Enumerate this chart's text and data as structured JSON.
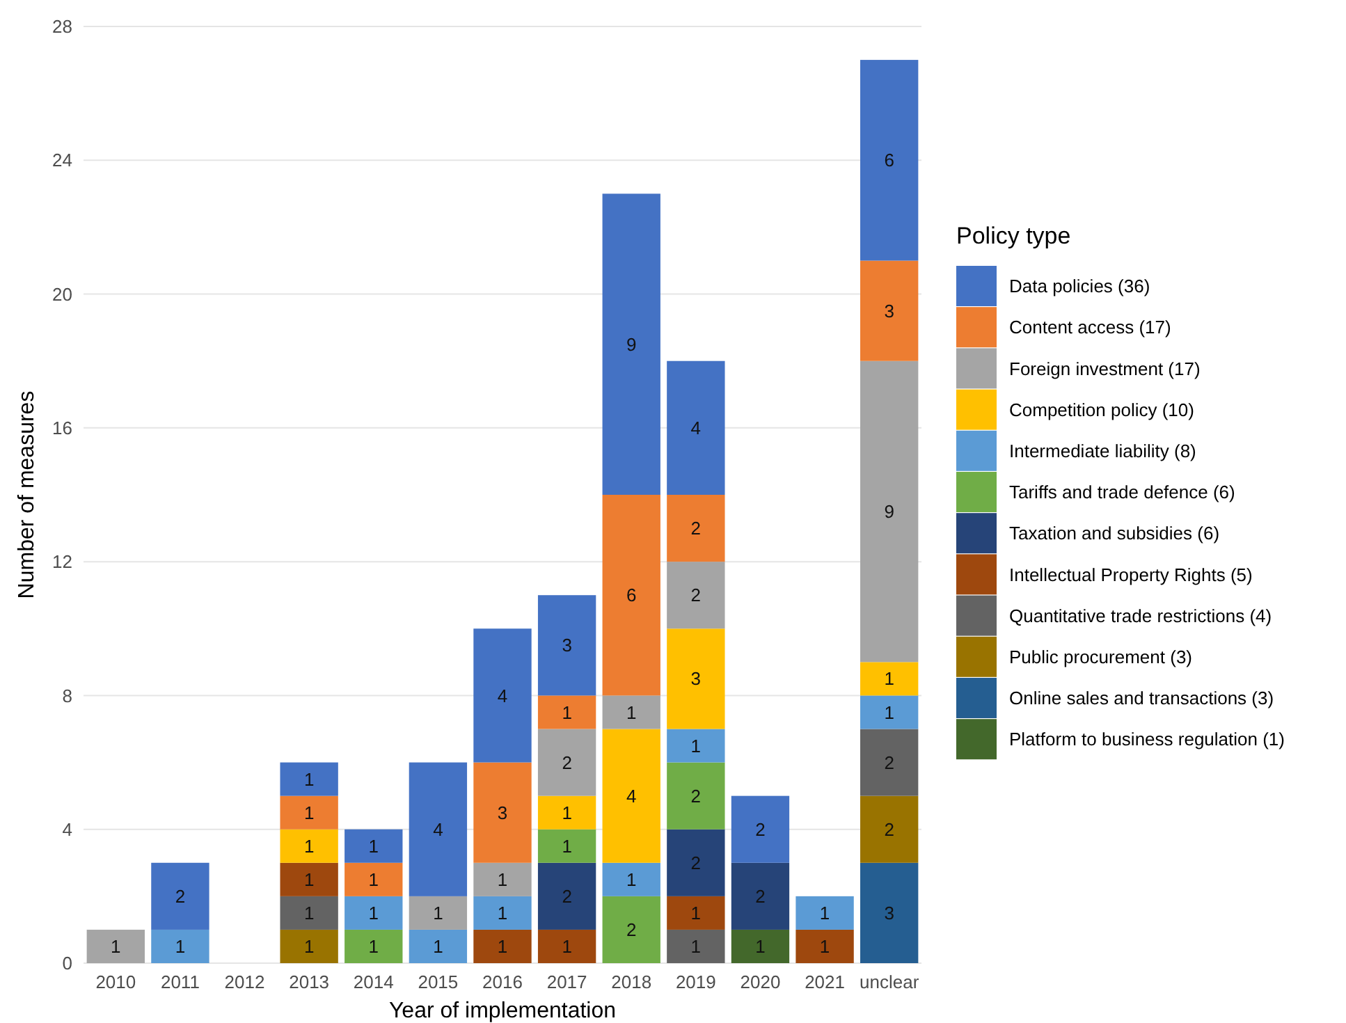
{
  "chart_data": {
    "type": "bar",
    "stacked": true,
    "xlabel": "Year of implementation",
    "ylabel": "Number of measures",
    "legend_title": "Policy type",
    "legend": "right",
    "grid": "y",
    "data_labels": true,
    "categories": [
      "2010",
      "2011",
      "2012",
      "2013",
      "2014",
      "2015",
      "2016",
      "2017",
      "2018",
      "2019",
      "2020",
      "2021",
      "unclear"
    ],
    "ylim": [
      0,
      28
    ],
    "yticks": [
      0,
      4,
      8,
      12,
      16,
      20,
      24,
      28
    ],
    "series": [
      {
        "name": "Platform to business regulation (1)",
        "color": "#43682b",
        "values": [
          null,
          null,
          null,
          null,
          null,
          null,
          null,
          null,
          null,
          null,
          1,
          null,
          null
        ]
      },
      {
        "name": "Online sales and transactions (3)",
        "color": "#255e91",
        "values": [
          null,
          null,
          null,
          null,
          null,
          null,
          null,
          null,
          null,
          null,
          null,
          null,
          3
        ]
      },
      {
        "name": "Public procurement (3)",
        "color": "#997300",
        "values": [
          null,
          null,
          null,
          1,
          null,
          null,
          null,
          null,
          null,
          null,
          null,
          null,
          2
        ]
      },
      {
        "name": "Quantitative trade restrictions (4)",
        "color": "#636363",
        "values": [
          null,
          null,
          null,
          1,
          null,
          null,
          null,
          null,
          null,
          1,
          null,
          null,
          2
        ]
      },
      {
        "name": "Intellectual Property Rights (5)",
        "color": "#9e480e",
        "values": [
          null,
          null,
          null,
          1,
          null,
          null,
          1,
          1,
          null,
          1,
          null,
          1,
          null
        ]
      },
      {
        "name": "Taxation and subsidies (6)",
        "color": "#264478",
        "values": [
          null,
          null,
          null,
          null,
          null,
          null,
          null,
          2,
          null,
          2,
          2,
          null,
          null
        ]
      },
      {
        "name": "Tariffs and trade defence (6)",
        "color": "#70ad47",
        "values": [
          null,
          null,
          null,
          null,
          1,
          null,
          null,
          1,
          2,
          2,
          null,
          null,
          null
        ]
      },
      {
        "name": "Intermediate liability (8)",
        "color": "#5b9bd5",
        "values": [
          null,
          1,
          null,
          null,
          1,
          1,
          1,
          null,
          1,
          1,
          null,
          1,
          1
        ]
      },
      {
        "name": "Competition policy (10)",
        "color": "#ffc000",
        "values": [
          null,
          null,
          null,
          1,
          null,
          null,
          null,
          1,
          4,
          3,
          null,
          null,
          1
        ]
      },
      {
        "name": "Foreign investment (17)",
        "color": "#a5a5a5",
        "values": [
          1,
          null,
          null,
          null,
          null,
          1,
          1,
          2,
          1,
          2,
          null,
          null,
          9
        ]
      },
      {
        "name": "Content access (17)",
        "color": "#ed7d31",
        "values": [
          null,
          null,
          null,
          1,
          1,
          null,
          3,
          1,
          6,
          2,
          null,
          null,
          3
        ]
      },
      {
        "name": "Data policies (36)",
        "color": "#4472c4",
        "values": [
          null,
          2,
          null,
          1,
          1,
          4,
          4,
          3,
          9,
          4,
          2,
          null,
          6
        ]
      }
    ]
  }
}
